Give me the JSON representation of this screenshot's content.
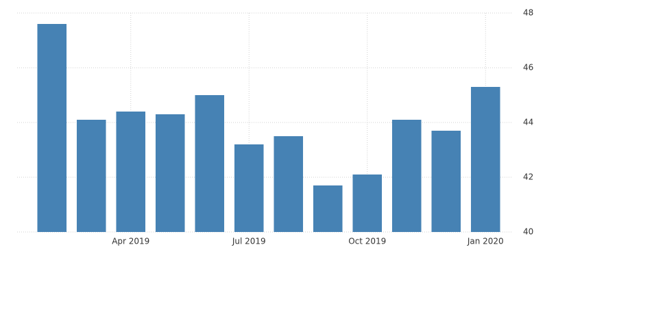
{
  "chart_data": {
    "type": "bar",
    "categories": [
      null,
      null,
      "Apr 2019",
      null,
      null,
      "Jul 2019",
      null,
      null,
      "Oct 2019",
      null,
      null,
      "Jan 2020"
    ],
    "values": [
      47.6,
      44.1,
      44.4,
      44.3,
      45,
      43.2,
      43.5,
      41.7,
      42.1,
      44.1,
      43.7,
      45.3
    ],
    "color": "#4682b4",
    "ylim": [
      40,
      48
    ],
    "yticks": [
      40,
      42,
      44,
      46,
      48
    ],
    "grid": true
  }
}
